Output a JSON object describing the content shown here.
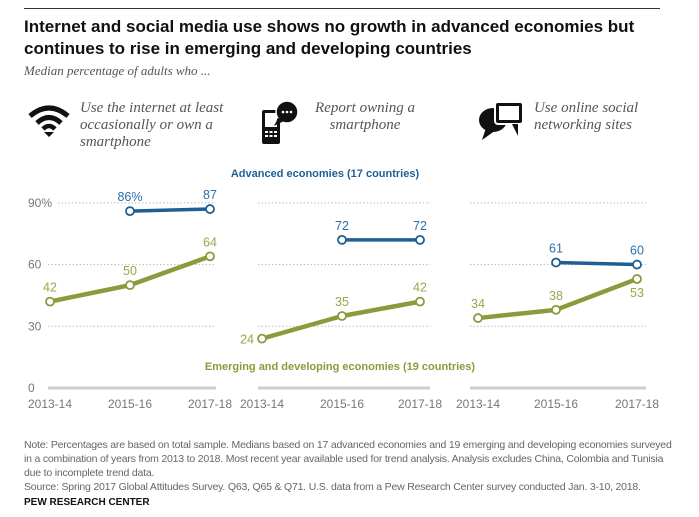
{
  "title": "Internet and social media use shows no growth in advanced economies but continues to rise in emerging and developing countries",
  "subtitle": "Median percentage of adults who ...",
  "colors": {
    "advanced": "#1f5f95",
    "advanced_label": "#2e6fa8",
    "emerging": "#8c9a3c",
    "emerging_label": "#9aa54a",
    "grid": "#bbbbbb",
    "axis_text": "#777777"
  },
  "chart_data": [
    {
      "type": "line",
      "title": "Use the internet at least occasionally or own a smartphone",
      "icon": "wifi-icon",
      "categories": [
        "2013-14",
        "2015-16",
        "2017-18"
      ],
      "ylim": [
        0,
        100
      ],
      "yticks": [
        0,
        30,
        60,
        90
      ],
      "ytick_labels": [
        "0",
        "30",
        "60",
        "90%"
      ],
      "grid": true,
      "series": [
        {
          "name": "Advanced economies (17 countries)",
          "values": [
            null,
            86,
            87
          ],
          "labels": [
            "",
            "86%",
            "87"
          ]
        },
        {
          "name": "Emerging and developing economies (19 countries)",
          "values": [
            42,
            50,
            64
          ],
          "labels": [
            "42",
            "50",
            "64"
          ]
        }
      ]
    },
    {
      "type": "line",
      "title": "Report owning a smartphone",
      "icon": "smartphone-icon",
      "categories": [
        "2013-14",
        "2015-16",
        "2017-18"
      ],
      "ylim": [
        0,
        100
      ],
      "grid": true,
      "series": [
        {
          "name": "Advanced economies (17 countries)",
          "values": [
            null,
            72,
            72
          ],
          "labels": [
            "",
            "72",
            "72"
          ]
        },
        {
          "name": "Emerging and developing economies (19 countries)",
          "values": [
            24,
            35,
            42
          ],
          "labels": [
            "24",
            "35",
            "42"
          ]
        }
      ]
    },
    {
      "type": "line",
      "title": "Use online social networking sites",
      "icon": "speech-bubbles-icon",
      "categories": [
        "2013-14",
        "2015-16",
        "2017-18"
      ],
      "ylim": [
        0,
        100
      ],
      "grid": true,
      "series": [
        {
          "name": "Advanced economies (17 countries)",
          "values": [
            null,
            61,
            60
          ],
          "labels": [
            "",
            "61",
            "60"
          ]
        },
        {
          "name": "Emerging and developing economies (19 countries)",
          "values": [
            34,
            38,
            53
          ],
          "labels": [
            "34",
            "38",
            "53"
          ]
        }
      ]
    }
  ],
  "panel_titles": [
    "Use the internet at least occasionally or own a smartphone",
    "Report owning a smartphone",
    "Use online social networking sites"
  ],
  "series_labels": {
    "advanced": "Advanced economies (17 countries)",
    "emerging": "Emerging and developing economies (19 countries)"
  },
  "note": "Note: Percentages are based on total sample. Medians based on 17 advanced economies and 19 emerging and developing economies surveyed in a combination of years from 2013 to 2018. Most recent year available used for trend analysis. Analysis excludes China, Colombia and Tunisia due to incomplete trend data.",
  "source": "Source: Spring 2017 Global Attitudes Survey. Q63, Q65 & Q71. U.S. data from a Pew Research Center survey conducted Jan. 3-10, 2018.",
  "brand": "PEW RESEARCH CENTER"
}
